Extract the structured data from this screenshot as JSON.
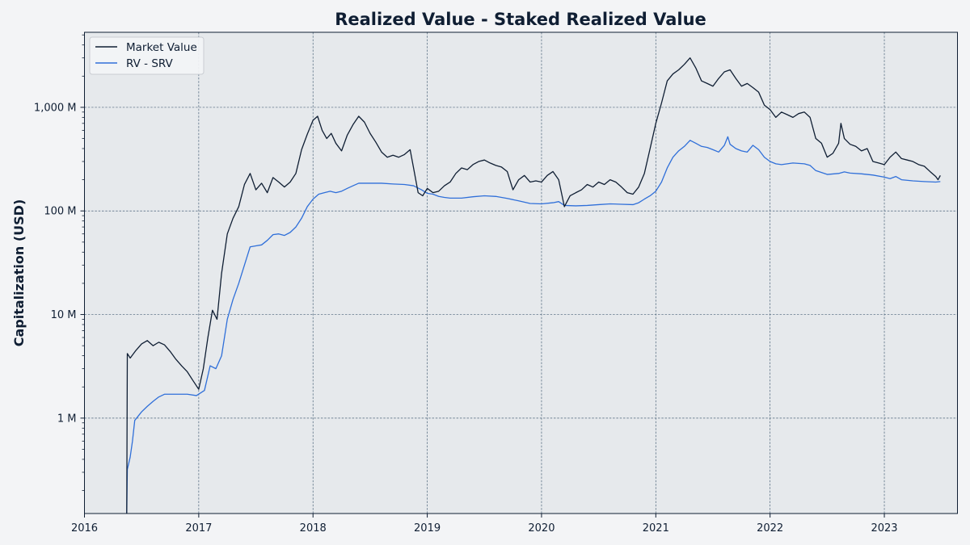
{
  "chart_data": {
    "type": "line",
    "title": "Realized Value - Staked Realized Value",
    "xlabel": "",
    "ylabel": "Capitalization (USD)",
    "yscale": "log",
    "xlim": [
      2016.0,
      2023.64
    ],
    "ylim": [
      0.12,
      5300
    ],
    "grid": true,
    "legend_position": "top-left",
    "x_ticks": [
      2016,
      2017,
      2018,
      2019,
      2020,
      2021,
      2022,
      2023
    ],
    "x_tick_labels": [
      "2016",
      "2017",
      "2018",
      "2019",
      "2020",
      "2021",
      "2022",
      "2023"
    ],
    "y_ticks": [
      1,
      10,
      100,
      1000
    ],
    "y_tick_labels": [
      "1 M",
      "10 M",
      "100 M",
      "1,000 M"
    ],
    "colors": {
      "background": "#f3f4f6",
      "plot_area": "#e6e9ec",
      "market_value": "#0f1e33",
      "rv_srv": "#2f6fd9"
    },
    "series": [
      {
        "name": "Market Value",
        "color": "#0f1e33",
        "points": [
          [
            2016.37,
            0.12
          ],
          [
            2016.375,
            4.2
          ],
          [
            2016.4,
            3.8
          ],
          [
            2016.45,
            4.5
          ],
          [
            2016.5,
            5.2
          ],
          [
            2016.55,
            5.6
          ],
          [
            2016.6,
            5.0
          ],
          [
            2016.65,
            5.4
          ],
          [
            2016.7,
            5.1
          ],
          [
            2016.75,
            4.4
          ],
          [
            2016.8,
            3.7
          ],
          [
            2016.85,
            3.2
          ],
          [
            2016.9,
            2.8
          ],
          [
            2016.95,
            2.3
          ],
          [
            2017.0,
            1.9
          ],
          [
            2017.04,
            3.0
          ],
          [
            2017.08,
            6.0
          ],
          [
            2017.12,
            11.0
          ],
          [
            2017.16,
            9.0
          ],
          [
            2017.2,
            25.0
          ],
          [
            2017.25,
            60.0
          ],
          [
            2017.3,
            85.0
          ],
          [
            2017.35,
            110.0
          ],
          [
            2017.4,
            180.0
          ],
          [
            2017.45,
            230.0
          ],
          [
            2017.5,
            160.0
          ],
          [
            2017.55,
            185.0
          ],
          [
            2017.6,
            150.0
          ],
          [
            2017.65,
            210.0
          ],
          [
            2017.7,
            190.0
          ],
          [
            2017.75,
            170.0
          ],
          [
            2017.8,
            190.0
          ],
          [
            2017.85,
            230.0
          ],
          [
            2017.9,
            390.0
          ],
          [
            2017.95,
            550.0
          ],
          [
            2018.0,
            750.0
          ],
          [
            2018.04,
            820.0
          ],
          [
            2018.08,
            600.0
          ],
          [
            2018.12,
            500.0
          ],
          [
            2018.16,
            560.0
          ],
          [
            2018.2,
            450.0
          ],
          [
            2018.25,
            380.0
          ],
          [
            2018.3,
            540.0
          ],
          [
            2018.35,
            680.0
          ],
          [
            2018.4,
            820.0
          ],
          [
            2018.45,
            720.0
          ],
          [
            2018.5,
            560.0
          ],
          [
            2018.55,
            460.0
          ],
          [
            2018.6,
            370.0
          ],
          [
            2018.65,
            330.0
          ],
          [
            2018.7,
            345.0
          ],
          [
            2018.75,
            330.0
          ],
          [
            2018.8,
            350.0
          ],
          [
            2018.85,
            390.0
          ],
          [
            2018.88,
            260.0
          ],
          [
            2018.92,
            150.0
          ],
          [
            2018.96,
            140.0
          ],
          [
            2019.0,
            165.0
          ],
          [
            2019.05,
            150.0
          ],
          [
            2019.1,
            155.0
          ],
          [
            2019.15,
            175.0
          ],
          [
            2019.2,
            190.0
          ],
          [
            2019.25,
            230.0
          ],
          [
            2019.3,
            260.0
          ],
          [
            2019.35,
            250.0
          ],
          [
            2019.4,
            280.0
          ],
          [
            2019.45,
            300.0
          ],
          [
            2019.5,
            310.0
          ],
          [
            2019.55,
            290.0
          ],
          [
            2019.6,
            275.0
          ],
          [
            2019.65,
            265.0
          ],
          [
            2019.7,
            240.0
          ],
          [
            2019.75,
            160.0
          ],
          [
            2019.8,
            200.0
          ],
          [
            2019.85,
            220.0
          ],
          [
            2019.9,
            190.0
          ],
          [
            2019.95,
            195.0
          ],
          [
            2020.0,
            190.0
          ],
          [
            2020.05,
            220.0
          ],
          [
            2020.1,
            240.0
          ],
          [
            2020.15,
            200.0
          ],
          [
            2020.2,
            110.0
          ],
          [
            2020.25,
            140.0
          ],
          [
            2020.3,
            150.0
          ],
          [
            2020.35,
            160.0
          ],
          [
            2020.4,
            180.0
          ],
          [
            2020.45,
            170.0
          ],
          [
            2020.5,
            190.0
          ],
          [
            2020.55,
            180.0
          ],
          [
            2020.6,
            200.0
          ],
          [
            2020.65,
            190.0
          ],
          [
            2020.7,
            170.0
          ],
          [
            2020.75,
            150.0
          ],
          [
            2020.8,
            145.0
          ],
          [
            2020.85,
            170.0
          ],
          [
            2020.9,
            230.0
          ],
          [
            2020.95,
            400.0
          ],
          [
            2021.0,
            700.0
          ],
          [
            2021.05,
            1100.0
          ],
          [
            2021.1,
            1800.0
          ],
          [
            2021.15,
            2100.0
          ],
          [
            2021.2,
            2300.0
          ],
          [
            2021.25,
            2600.0
          ],
          [
            2021.3,
            3000.0
          ],
          [
            2021.35,
            2400.0
          ],
          [
            2021.4,
            1800.0
          ],
          [
            2021.45,
            1700.0
          ],
          [
            2021.5,
            1600.0
          ],
          [
            2021.55,
            1900.0
          ],
          [
            2021.6,
            2200.0
          ],
          [
            2021.65,
            2300.0
          ],
          [
            2021.7,
            1900.0
          ],
          [
            2021.75,
            1600.0
          ],
          [
            2021.8,
            1700.0
          ],
          [
            2021.85,
            1550.0
          ],
          [
            2021.9,
            1400.0
          ],
          [
            2021.95,
            1050.0
          ],
          [
            2022.0,
            950.0
          ],
          [
            2022.05,
            800.0
          ],
          [
            2022.1,
            900.0
          ],
          [
            2022.15,
            850.0
          ],
          [
            2022.2,
            800.0
          ],
          [
            2022.25,
            870.0
          ],
          [
            2022.3,
            900.0
          ],
          [
            2022.35,
            800.0
          ],
          [
            2022.4,
            500.0
          ],
          [
            2022.45,
            450.0
          ],
          [
            2022.5,
            330.0
          ],
          [
            2022.55,
            360.0
          ],
          [
            2022.6,
            450.0
          ],
          [
            2022.62,
            700.0
          ],
          [
            2022.65,
            500.0
          ],
          [
            2022.7,
            440.0
          ],
          [
            2022.75,
            420.0
          ],
          [
            2022.8,
            380.0
          ],
          [
            2022.85,
            400.0
          ],
          [
            2022.9,
            300.0
          ],
          [
            2022.95,
            290.0
          ],
          [
            2023.0,
            280.0
          ],
          [
            2023.05,
            330.0
          ],
          [
            2023.1,
            370.0
          ],
          [
            2023.15,
            320.0
          ],
          [
            2023.2,
            310.0
          ],
          [
            2023.25,
            300.0
          ],
          [
            2023.3,
            280.0
          ],
          [
            2023.35,
            270.0
          ],
          [
            2023.4,
            240.0
          ],
          [
            2023.45,
            215.0
          ],
          [
            2023.47,
            200.0
          ],
          [
            2023.49,
            220.0
          ]
        ]
      },
      {
        "name": "RV - SRV",
        "color": "#2f6fd9",
        "points": [
          [
            2016.37,
            0.12
          ],
          [
            2016.375,
            0.32
          ],
          [
            2016.4,
            0.42
          ],
          [
            2016.42,
            0.6
          ],
          [
            2016.44,
            0.95
          ],
          [
            2016.5,
            1.15
          ],
          [
            2016.55,
            1.3
          ],
          [
            2016.6,
            1.45
          ],
          [
            2016.65,
            1.6
          ],
          [
            2016.7,
            1.7
          ],
          [
            2016.8,
            1.7
          ],
          [
            2016.9,
            1.7
          ],
          [
            2016.98,
            1.65
          ],
          [
            2017.05,
            1.85
          ],
          [
            2017.1,
            3.2
          ],
          [
            2017.15,
            3.0
          ],
          [
            2017.2,
            4.0
          ],
          [
            2017.25,
            9.0
          ],
          [
            2017.3,
            14.0
          ],
          [
            2017.35,
            20.0
          ],
          [
            2017.4,
            30.0
          ],
          [
            2017.45,
            45.0
          ],
          [
            2017.5,
            46.0
          ],
          [
            2017.55,
            47.0
          ],
          [
            2017.6,
            52.0
          ],
          [
            2017.65,
            59.0
          ],
          [
            2017.7,
            60.0
          ],
          [
            2017.75,
            58.0
          ],
          [
            2017.8,
            62.0
          ],
          [
            2017.85,
            70.0
          ],
          [
            2017.9,
            85.0
          ],
          [
            2017.95,
            110.0
          ],
          [
            2018.0,
            130.0
          ],
          [
            2018.05,
            145.0
          ],
          [
            2018.1,
            150.0
          ],
          [
            2018.15,
            155.0
          ],
          [
            2018.2,
            150.0
          ],
          [
            2018.25,
            155.0
          ],
          [
            2018.3,
            165.0
          ],
          [
            2018.35,
            175.0
          ],
          [
            2018.4,
            185.0
          ],
          [
            2018.5,
            185.0
          ],
          [
            2018.6,
            185.0
          ],
          [
            2018.7,
            182.0
          ],
          [
            2018.8,
            180.0
          ],
          [
            2018.88,
            175.0
          ],
          [
            2018.95,
            160.0
          ],
          [
            2019.0,
            148.0
          ],
          [
            2019.05,
            145.0
          ],
          [
            2019.1,
            138.0
          ],
          [
            2019.15,
            135.0
          ],
          [
            2019.2,
            133.0
          ],
          [
            2019.3,
            133.0
          ],
          [
            2019.4,
            137.0
          ],
          [
            2019.5,
            140.0
          ],
          [
            2019.6,
            138.0
          ],
          [
            2019.7,
            132.0
          ],
          [
            2019.8,
            125.0
          ],
          [
            2019.9,
            118.0
          ],
          [
            2020.0,
            117.0
          ],
          [
            2020.1,
            120.0
          ],
          [
            2020.15,
            123.0
          ],
          [
            2020.2,
            113.0
          ],
          [
            2020.3,
            112.0
          ],
          [
            2020.4,
            113.0
          ],
          [
            2020.5,
            115.0
          ],
          [
            2020.6,
            117.0
          ],
          [
            2020.7,
            116.0
          ],
          [
            2020.8,
            115.0
          ],
          [
            2020.85,
            120.0
          ],
          [
            2020.9,
            130.0
          ],
          [
            2020.95,
            140.0
          ],
          [
            2021.0,
            155.0
          ],
          [
            2021.05,
            190.0
          ],
          [
            2021.1,
            260.0
          ],
          [
            2021.15,
            330.0
          ],
          [
            2021.2,
            380.0
          ],
          [
            2021.25,
            420.0
          ],
          [
            2021.3,
            480.0
          ],
          [
            2021.35,
            450.0
          ],
          [
            2021.4,
            420.0
          ],
          [
            2021.45,
            410.0
          ],
          [
            2021.5,
            390.0
          ],
          [
            2021.55,
            370.0
          ],
          [
            2021.6,
            430.0
          ],
          [
            2021.63,
            520.0
          ],
          [
            2021.65,
            440.0
          ],
          [
            2021.7,
            400.0
          ],
          [
            2021.75,
            380.0
          ],
          [
            2021.8,
            370.0
          ],
          [
            2021.85,
            430.0
          ],
          [
            2021.9,
            390.0
          ],
          [
            2021.95,
            330.0
          ],
          [
            2022.0,
            300.0
          ],
          [
            2022.05,
            285.0
          ],
          [
            2022.1,
            280.0
          ],
          [
            2022.15,
            285.0
          ],
          [
            2022.2,
            290.0
          ],
          [
            2022.3,
            285.0
          ],
          [
            2022.35,
            275.0
          ],
          [
            2022.4,
            245.0
          ],
          [
            2022.45,
            235.0
          ],
          [
            2022.5,
            225.0
          ],
          [
            2022.6,
            230.0
          ],
          [
            2022.65,
            238.0
          ],
          [
            2022.7,
            232.0
          ],
          [
            2022.8,
            228.0
          ],
          [
            2022.9,
            222.0
          ],
          [
            2023.0,
            212.0
          ],
          [
            2023.05,
            205.0
          ],
          [
            2023.1,
            215.0
          ],
          [
            2023.15,
            200.0
          ],
          [
            2023.25,
            195.0
          ],
          [
            2023.35,
            192.0
          ],
          [
            2023.45,
            190.0
          ],
          [
            2023.49,
            192.0
          ]
        ]
      }
    ]
  }
}
